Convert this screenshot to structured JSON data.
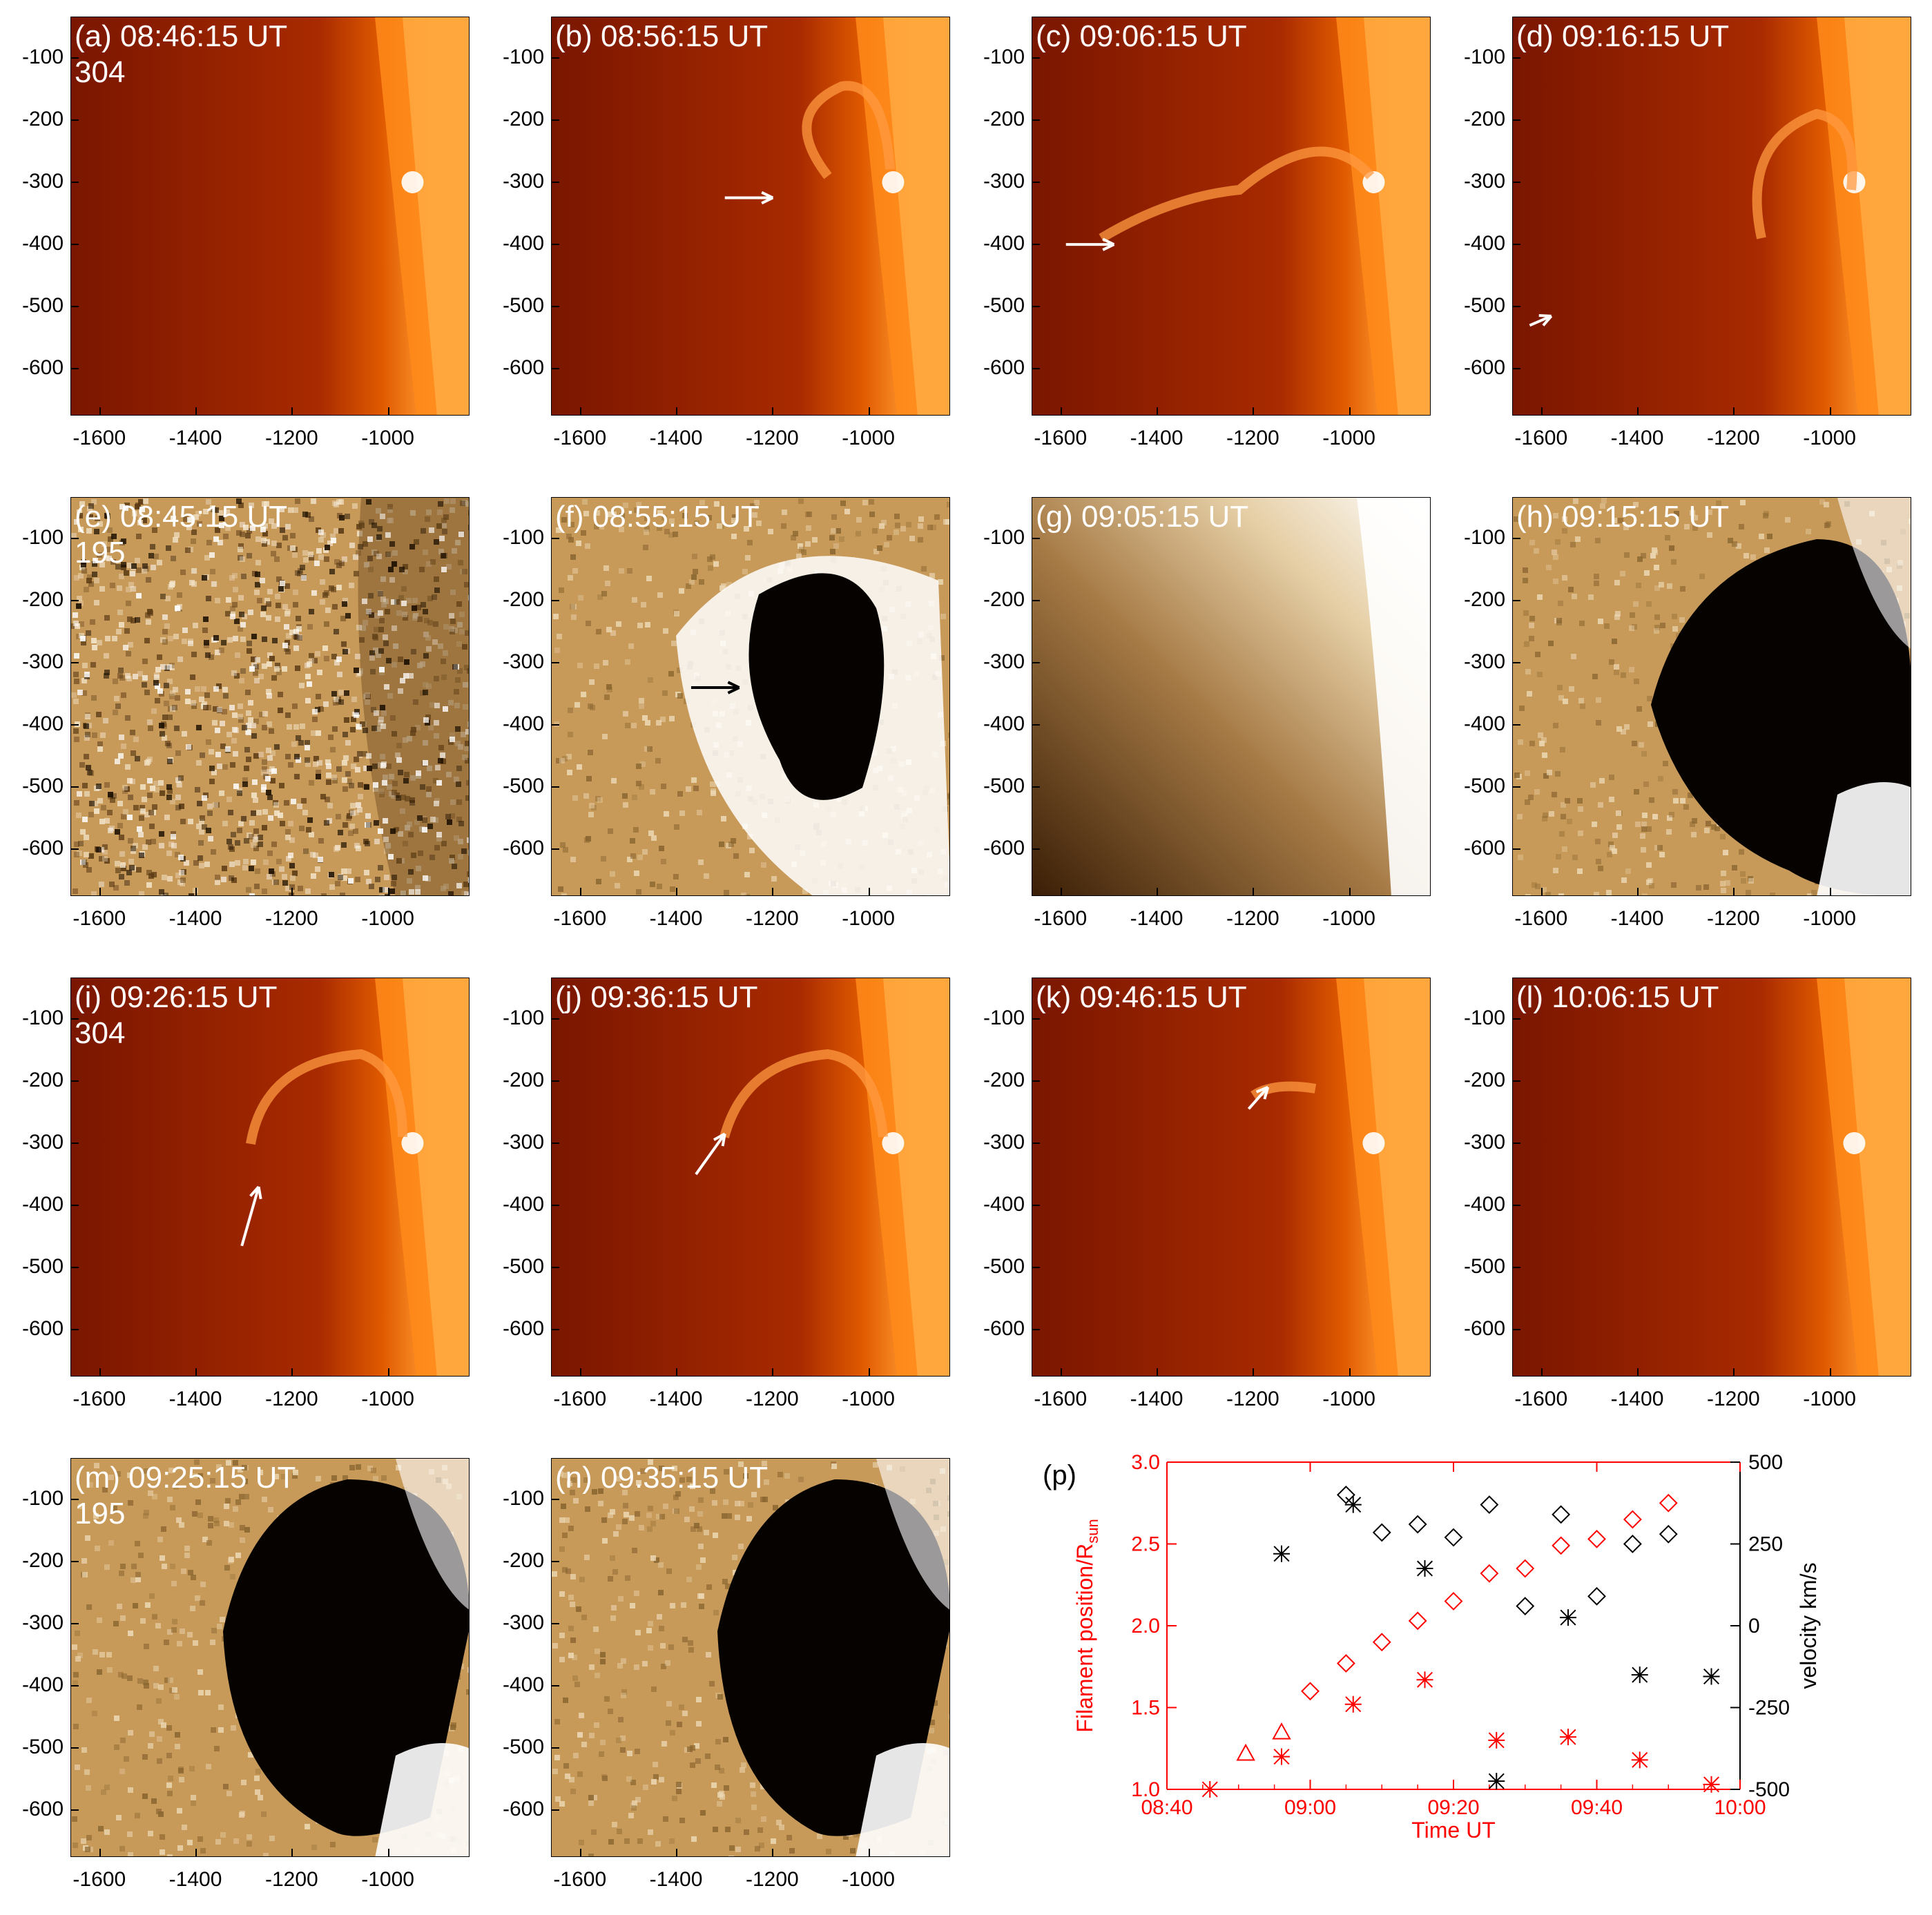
{
  "panels": [
    {
      "id": "a",
      "label": "(a) 08:46:15 UT",
      "wavelength": "304",
      "type": "304"
    },
    {
      "id": "b",
      "label": "(b) 08:56:15 UT",
      "wavelength": "",
      "type": "304"
    },
    {
      "id": "c",
      "label": "(c) 09:06:15 UT",
      "wavelength": "",
      "type": "304"
    },
    {
      "id": "d",
      "label": "(d) 09:16:15 UT",
      "wavelength": "",
      "type": "304"
    },
    {
      "id": "e",
      "label": "(e) 08:45:15 UT",
      "wavelength": "195",
      "type": "diff"
    },
    {
      "id": "f",
      "label": "(f) 08:55:15 UT",
      "wavelength": "",
      "type": "diff"
    },
    {
      "id": "g",
      "label": "(g) 09:05:15 UT",
      "wavelength": "",
      "type": "195"
    },
    {
      "id": "h",
      "label": "(h) 09:15:15 UT",
      "wavelength": "",
      "type": "diff"
    },
    {
      "id": "i",
      "label": "(i) 09:26:15 UT",
      "wavelength": "304",
      "type": "304"
    },
    {
      "id": "j",
      "label": "(j) 09:36:15 UT",
      "wavelength": "",
      "type": "304"
    },
    {
      "id": "k",
      "label": "(k) 09:46:15 UT",
      "wavelength": "",
      "type": "304"
    },
    {
      "id": "l",
      "label": "(l) 10:06:15 UT",
      "wavelength": "",
      "type": "304"
    },
    {
      "id": "m",
      "label": "(m) 09:25:15 UT",
      "wavelength": "195",
      "type": "diff"
    },
    {
      "id": "n",
      "label": "(n) 09:35:15 UT",
      "wavelength": "",
      "type": "diff"
    }
  ],
  "image_axes": {
    "x_ticks": [
      "-1600",
      "-1400",
      "-1200",
      "-1000"
    ],
    "y_ticks": [
      "-100",
      "-200",
      "-300",
      "-400",
      "-500",
      "-600"
    ]
  },
  "colors": {
    "he304_bg": "#8b1a00",
    "he304_limb": "#ff8a1a",
    "euv_diff": "#c89a5a",
    "arrow_white": "#ffffff",
    "arrow_black": "#000000",
    "plot_red": "#ff0000",
    "plot_black": "#000000"
  },
  "plot_p": {
    "label": "(p)",
    "xlabel": "Time UT",
    "ylabel_left": "Filament position/R",
    "ylabel_left_sub": "sun",
    "ylabel_right": "velocity km/s"
  },
  "chart_data": {
    "type": "scatter",
    "title": "(p)",
    "xlabel": "Time UT",
    "ylabel": "Filament position/R_sun",
    "ylabel_right": "velocity km/s",
    "x_ticks": [
      "08:40",
      "09:00",
      "09:20",
      "09:40",
      "10:00"
    ],
    "xlim_minutes": [
      520,
      600
    ],
    "ylim_left": [
      1.0,
      3.0
    ],
    "y_ticks_left": [
      "1.0",
      "1.5",
      "2.0",
      "2.5",
      "3.0"
    ],
    "ylim_right": [
      -500,
      500
    ],
    "y_ticks_right": [
      "-500",
      "-250",
      "0",
      "250",
      "500"
    ],
    "series": [
      {
        "color": "red",
        "marker": "triangle",
        "axis": "left",
        "x": [
          "08:51",
          "08:56"
        ],
        "y": [
          1.22,
          1.35
        ]
      },
      {
        "color": "red",
        "marker": "diamond",
        "axis": "left",
        "x": [
          "09:00",
          "09:05",
          "09:10",
          "09:15",
          "09:20",
          "09:25",
          "09:30",
          "09:35",
          "09:40",
          "09:45",
          "09:50"
        ],
        "y": [
          1.6,
          1.77,
          1.9,
          2.03,
          2.15,
          2.32,
          2.35,
          2.49,
          2.53,
          2.65,
          2.75
        ]
      },
      {
        "color": "red",
        "marker": "asterisk",
        "axis": "left",
        "x": [
          "08:46",
          "08:56",
          "09:06",
          "09:16",
          "09:26",
          "09:36",
          "09:46",
          "09:56"
        ],
        "y": [
          1.0,
          1.2,
          1.52,
          1.67,
          1.3,
          1.32,
          1.18,
          1.03
        ]
      },
      {
        "color": "black",
        "marker": "diamond",
        "axis": "right",
        "x": [
          "09:05",
          "09:10",
          "09:15",
          "09:20",
          "09:25",
          "09:30",
          "09:35",
          "09:40",
          "09:45",
          "09:50"
        ],
        "y": [
          400,
          285,
          310,
          270,
          370,
          60,
          340,
          90,
          250,
          280
        ]
      },
      {
        "color": "black",
        "marker": "asterisk",
        "axis": "right",
        "x": [
          "08:56",
          "09:06",
          "09:16",
          "09:26",
          "09:36",
          "09:46",
          "09:56"
        ],
        "y": [
          220,
          370,
          175,
          -475,
          25,
          -150,
          -155
        ]
      }
    ]
  }
}
